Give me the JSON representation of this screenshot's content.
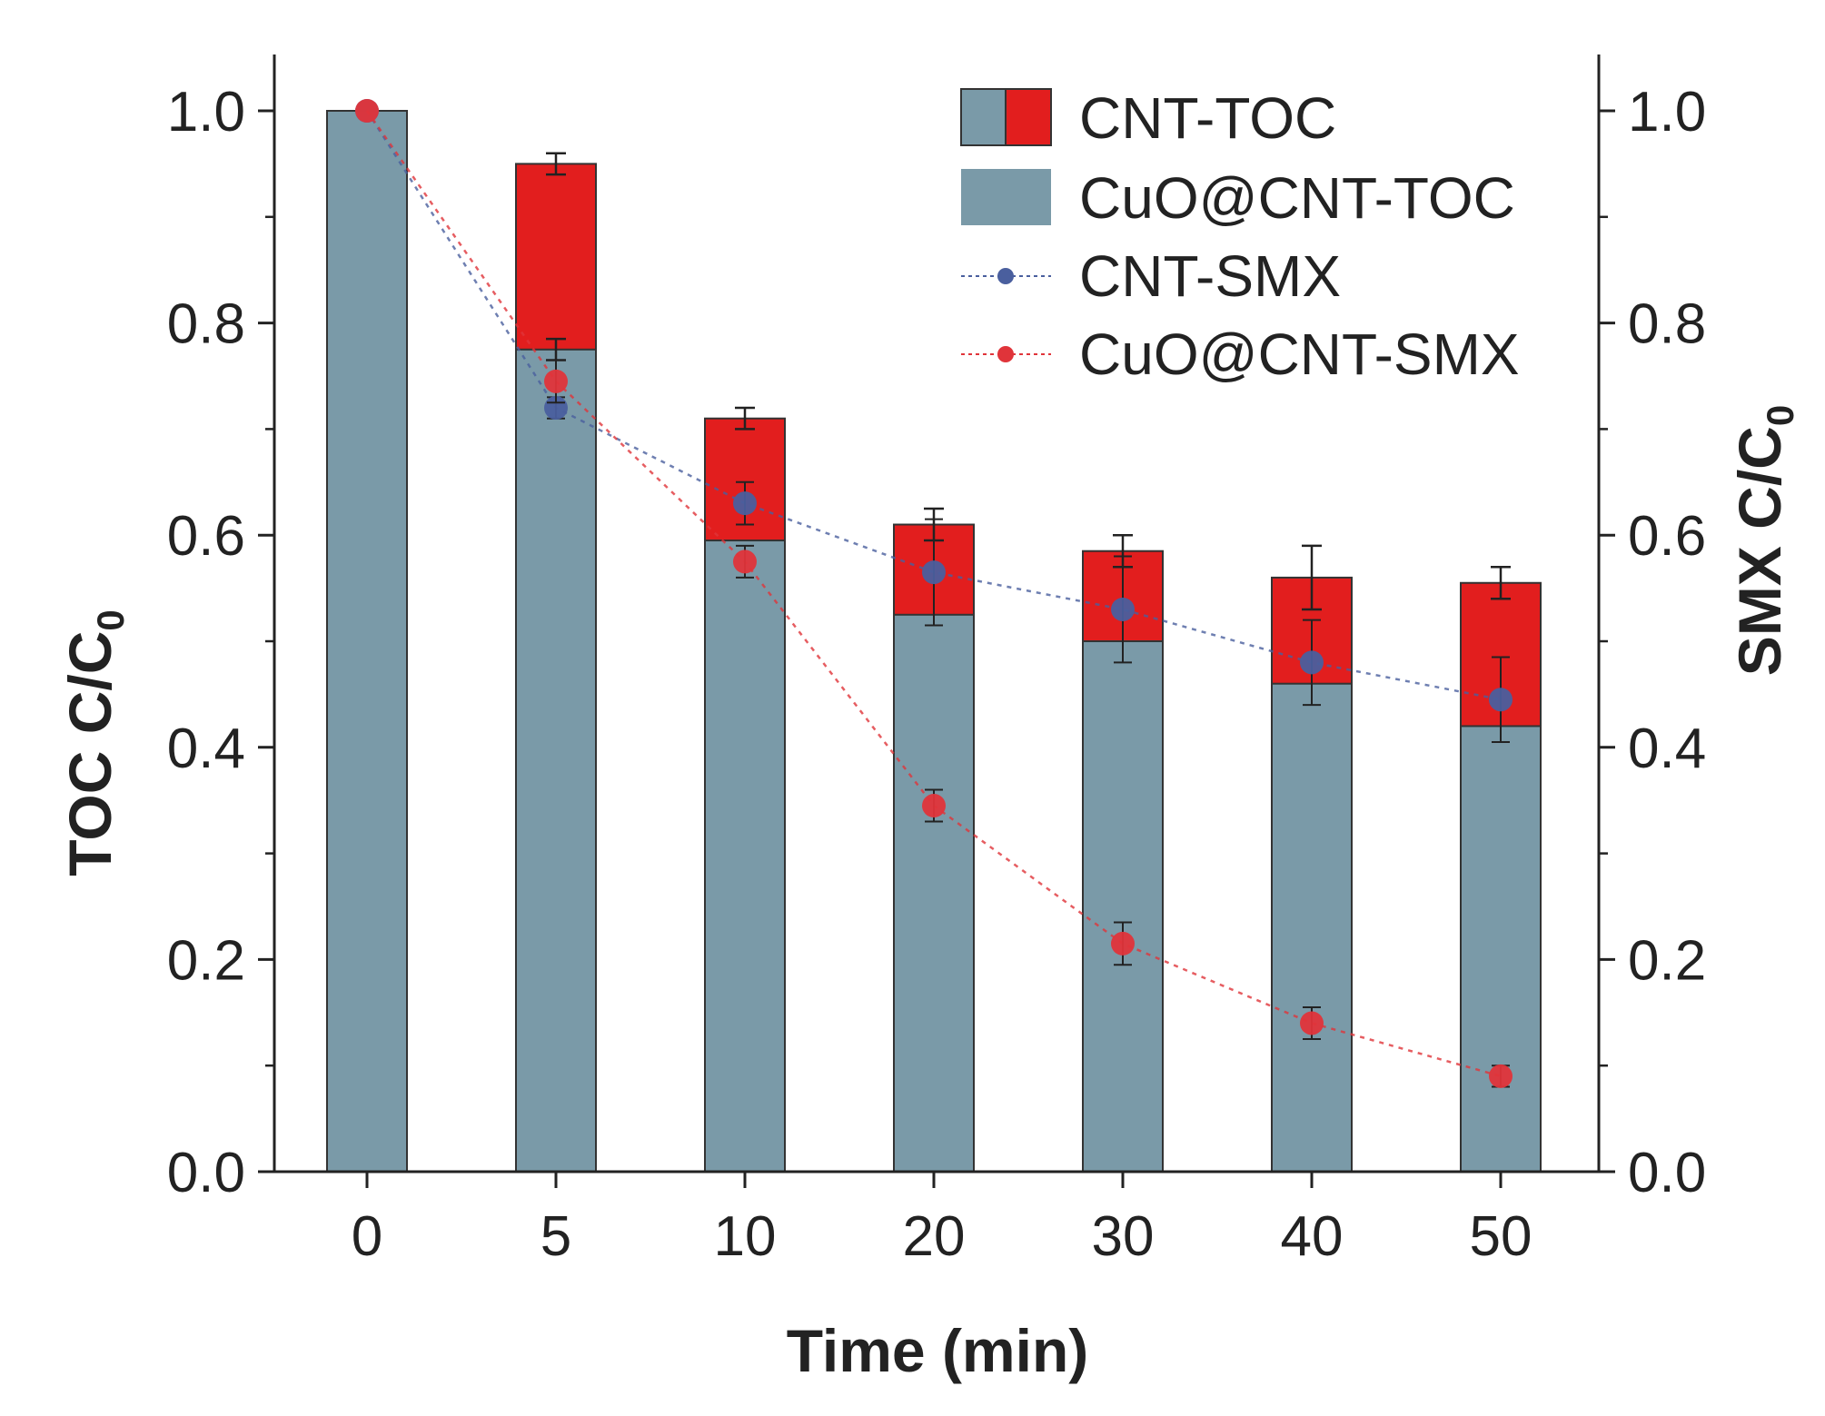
{
  "chart_data": {
    "type": "bar",
    "categories": [
      "0",
      "5",
      "10",
      "20",
      "30",
      "40",
      "50"
    ],
    "xlabel": "Time (min)",
    "ylabel_left": "TOC C/C",
    "ylabel_left_sub": "0",
    "ylabel_right": "SMX C/C",
    "ylabel_right_sub": "0",
    "ylim_left": [
      0,
      1.05
    ],
    "ylim_right": [
      0,
      1.05
    ],
    "yticks": [
      "0.0",
      "0.2",
      "0.4",
      "0.6",
      "0.8",
      "1.0"
    ],
    "ytick_values": [
      0.0,
      0.2,
      0.4,
      0.6,
      0.8,
      1.0
    ],
    "bar_series": [
      {
        "name": "CNT-TOC",
        "color": "#e21e1e",
        "values": [
          1.0,
          0.95,
          0.71,
          0.61,
          0.585,
          0.56,
          0.555
        ],
        "errors": [
          0.0,
          0.01,
          0.01,
          0.015,
          0.015,
          0.03,
          0.015
        ]
      },
      {
        "name": "CuO@CNT-TOC",
        "color": "#7a9aa8",
        "values": [
          1.0,
          0.775,
          0.595,
          0.525,
          0.5,
          0.46,
          0.42
        ],
        "errors": [
          0.0,
          0.01,
          0.0,
          0.0,
          0.0,
          0.0,
          0.0
        ]
      }
    ],
    "line_series": [
      {
        "name": "CNT-SMX",
        "color": "#4a5f9e",
        "axis": "right",
        "values": [
          1.0,
          0.72,
          0.63,
          0.565,
          0.53,
          0.48,
          0.445
        ],
        "errors": [
          0.0,
          0.01,
          0.02,
          0.05,
          0.05,
          0.04,
          0.04
        ]
      },
      {
        "name": "CuO@CNT-SMX",
        "color": "#e0343a",
        "axis": "right",
        "values": [
          1.0,
          0.745,
          0.575,
          0.345,
          0.215,
          0.14,
          0.09
        ],
        "errors": [
          0.0,
          0.02,
          0.015,
          0.015,
          0.02,
          0.015,
          0.01
        ]
      }
    ],
    "legend": [
      "CNT-TOC",
      "CuO@CNT-TOC",
      "CNT-SMX",
      "CuO@CNT-SMX"
    ],
    "legend_position": "top-right",
    "grid": false
  }
}
